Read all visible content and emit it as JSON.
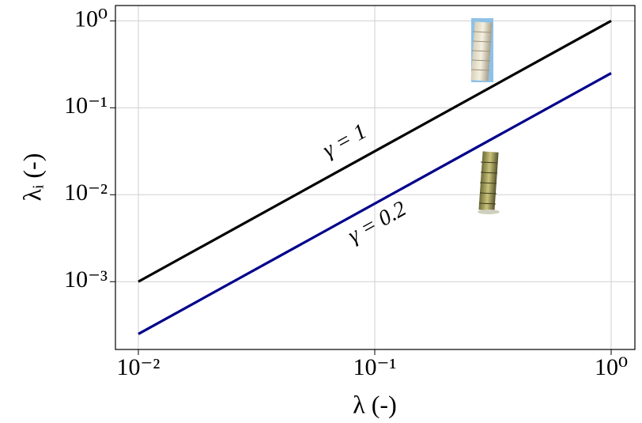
{
  "chart_data": {
    "type": "line",
    "x": [
      0.01,
      1
    ],
    "series": [
      {
        "name": "γ = 1",
        "color": "#000000",
        "values": [
          0.001,
          1
        ]
      },
      {
        "name": "γ = 0.2",
        "color": "#00008b",
        "values": [
          0.00025,
          0.25
        ]
      }
    ],
    "xlabel": "λ (-)",
    "ylabel": "λᵢ (-)",
    "annotations": [
      "γ = 1",
      "γ = 0.2"
    ],
    "xlim": [
      0.008,
      1.26
    ],
    "ylim": [
      0.000166,
      1.5
    ],
    "xticks": [
      {
        "value": 0.01,
        "label": "10⁻²"
      },
      {
        "value": 0.1,
        "label": "10⁻¹"
      },
      {
        "value": 1,
        "label": "10⁰"
      }
    ],
    "yticks": [
      {
        "value": 0.001,
        "label": "10⁻³"
      },
      {
        "value": 0.01,
        "label": "10⁻²"
      },
      {
        "value": 0.1,
        "label": "10⁻¹"
      },
      {
        "value": 1,
        "label": "10⁰"
      }
    ],
    "xscale": "log",
    "yscale": "log",
    "grid": true
  }
}
